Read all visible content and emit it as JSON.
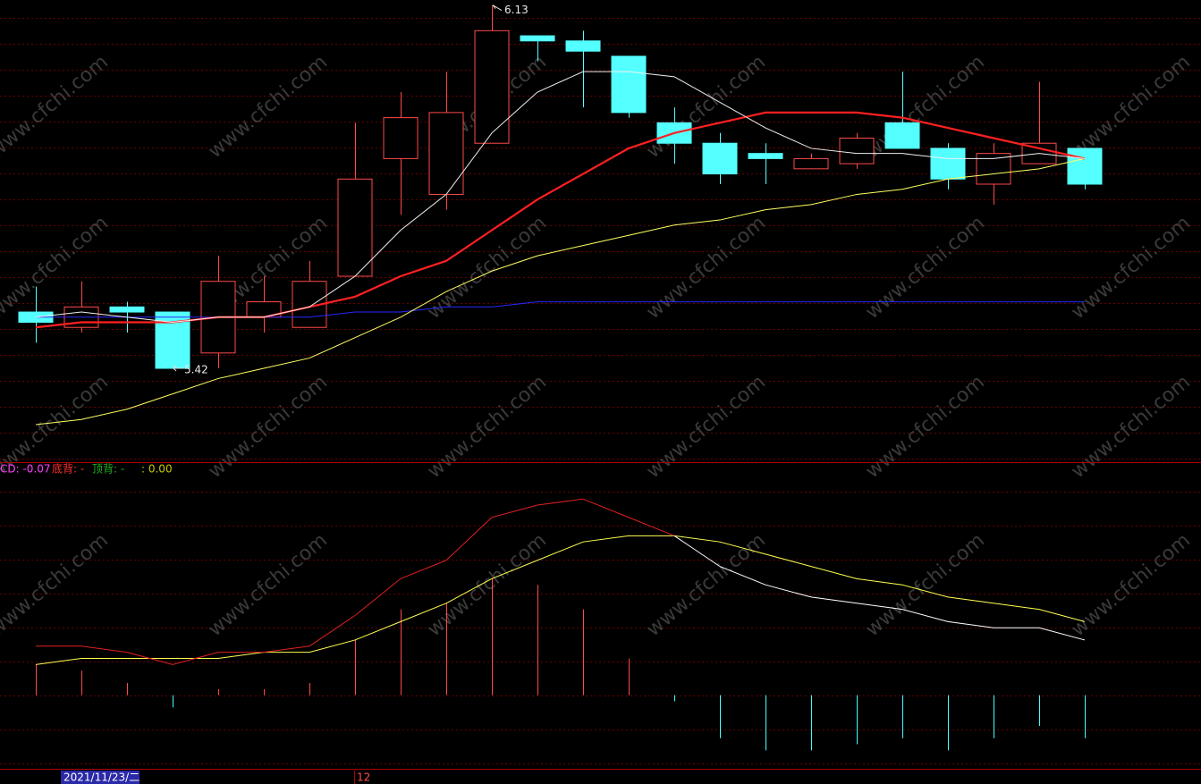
{
  "chart_data": [
    {
      "type": "candlestick",
      "candles": {
        "open": [
          5.53,
          5.5,
          5.54,
          5.53,
          5.45,
          5.52,
          5.5,
          5.6,
          5.83,
          5.76,
          5.86,
          6.07,
          6.06,
          6.03,
          5.9,
          5.86,
          5.84,
          5.81,
          5.82,
          5.9,
          5.85,
          5.78,
          5.82,
          5.85
        ],
        "high": [
          5.58,
          5.59,
          5.55,
          5.53,
          5.64,
          5.6,
          5.63,
          5.9,
          5.96,
          6.0,
          6.13,
          6.07,
          6.08,
          6.03,
          5.93,
          5.88,
          5.86,
          5.84,
          5.88,
          6.0,
          5.86,
          5.86,
          5.98,
          5.85
        ],
        "low": [
          5.47,
          5.49,
          5.49,
          5.42,
          5.42,
          5.49,
          5.5,
          5.6,
          5.72,
          5.73,
          5.86,
          6.02,
          5.93,
          5.91,
          5.82,
          5.78,
          5.78,
          5.81,
          5.81,
          5.85,
          5.77,
          5.74,
          5.82,
          5.77
        ],
        "close": [
          5.51,
          5.54,
          5.53,
          5.42,
          5.59,
          5.55,
          5.59,
          5.79,
          5.91,
          5.92,
          6.08,
          6.06,
          6.04,
          5.92,
          5.86,
          5.8,
          5.83,
          5.83,
          5.87,
          5.85,
          5.79,
          5.84,
          5.86,
          5.78
        ]
      },
      "up_color": "#ff4a4a",
      "down_color": "#54ffff",
      "series": [
        {
          "color": "#2828ff",
          "width": 1,
          "values": [
            5.52,
            5.52,
            5.52,
            5.52,
            5.52,
            5.52,
            5.52,
            5.53,
            5.53,
            5.54,
            5.54,
            5.55,
            5.55,
            5.55,
            5.55,
            5.55,
            5.55,
            5.55,
            5.55,
            5.55,
            5.55,
            5.55,
            5.55,
            5.55
          ]
        },
        {
          "color": "#ffff60",
          "width": 1,
          "values": [
            5.31,
            5.32,
            5.34,
            5.37,
            5.4,
            5.42,
            5.44,
            5.48,
            5.52,
            5.57,
            5.61,
            5.64,
            5.66,
            5.68,
            5.7,
            5.71,
            5.73,
            5.74,
            5.76,
            5.77,
            5.79,
            5.8,
            5.81,
            5.83
          ]
        },
        {
          "color": "#ff2020",
          "width": 2.2,
          "values": [
            5.5,
            5.51,
            5.51,
            5.51,
            5.52,
            5.52,
            5.54,
            5.56,
            5.6,
            5.63,
            5.69,
            5.75,
            5.8,
            5.85,
            5.88,
            5.9,
            5.92,
            5.92,
            5.92,
            5.91,
            5.89,
            5.87,
            5.85,
            5.83
          ]
        },
        {
          "color": "#f0f0f0",
          "width": 1,
          "values": [
            5.52,
            5.53,
            5.52,
            5.51,
            5.52,
            5.52,
            5.54,
            5.6,
            5.69,
            5.76,
            5.88,
            5.96,
            6.0,
            6.0,
            5.99,
            5.94,
            5.89,
            5.85,
            5.84,
            5.84,
            5.83,
            5.83,
            5.84,
            5.83
          ]
        }
      ],
      "ylim": [
        5.24,
        6.14
      ]
    },
    {
      "type": "macd",
      "legend": [
        {
          "text": "CD: -0.07",
          "color": "#ff40ff"
        },
        {
          "text": "底背: -",
          "color": "#ff3030"
        },
        {
          "text": "顶背: -",
          "color": "#20b020"
        },
        {
          "text": ": 0.00",
          "color": "#c8c800"
        }
      ],
      "series": [
        {
          "color": "#e02020",
          "color_below": "#ffffff",
          "values": [
            0.08,
            0.08,
            0.07,
            0.05,
            0.07,
            0.07,
            0.08,
            0.13,
            0.19,
            0.22,
            0.29,
            0.31,
            0.32,
            0.29,
            0.26,
            0.21,
            0.18,
            0.16,
            0.15,
            0.14,
            0.12,
            0.11,
            0.11,
            0.09
          ]
        },
        {
          "color": "#ffff50",
          "values": [
            0.05,
            0.06,
            0.06,
            0.06,
            0.06,
            0.07,
            0.07,
            0.09,
            0.12,
            0.15,
            0.19,
            0.22,
            0.25,
            0.26,
            0.26,
            0.25,
            0.23,
            0.21,
            0.19,
            0.18,
            0.16,
            0.15,
            0.14,
            0.12
          ]
        }
      ],
      "bars": {
        "up_color": "#ff4a4a",
        "down_color": "#40ffff",
        "values": [
          0.05,
          0.04,
          0.02,
          -0.02,
          0.01,
          0.01,
          0.02,
          0.09,
          0.14,
          0.15,
          0.19,
          0.18,
          0.14,
          0.06,
          -0.01,
          -0.07,
          -0.09,
          -0.09,
          -0.08,
          -0.07,
          -0.09,
          -0.07,
          -0.05,
          -0.07
        ]
      },
      "ylim": [
        -0.12,
        0.38
      ]
    }
  ],
  "x_axis": {
    "cursor_date": "2021/11/23/二",
    "month_label": "12"
  },
  "watermark": "www.cfchi.com"
}
